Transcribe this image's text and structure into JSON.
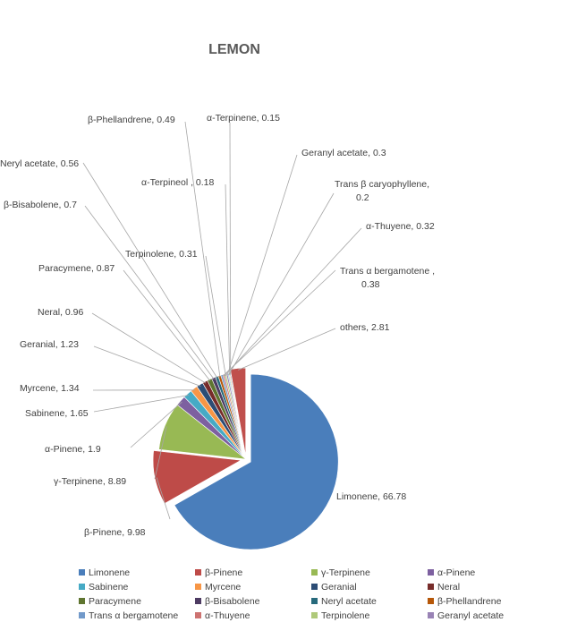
{
  "chart_data": {
    "type": "pie",
    "title": "LEMON",
    "slices": [
      {
        "name": "Limonene",
        "value": 66.78,
        "label": "Limonene, 66.78",
        "color": "#4a7ebb"
      },
      {
        "name": "β-Pinene",
        "value": 9.98,
        "label": "β-Pinene, 9.98",
        "color": "#be4b48"
      },
      {
        "name": "γ-Terpinene",
        "value": 8.89,
        "label": "γ-Terpinene, 8.89",
        "color": "#98b954"
      },
      {
        "name": "α-Pinene",
        "value": 1.9,
        "label": "α-Pinene, 1.9",
        "color": "#7d60a0"
      },
      {
        "name": "Sabinene",
        "value": 1.65,
        "label": "Sabinene, 1.65",
        "color": "#46aac5"
      },
      {
        "name": "Myrcene",
        "value": 1.34,
        "label": "Myrcene, 1.34",
        "color": "#f79646"
      },
      {
        "name": "Geranial",
        "value": 1.23,
        "label": "Geranial, 1.23",
        "color": "#2c4d75"
      },
      {
        "name": "Neral",
        "value": 0.96,
        "label": "Neral, 0.96",
        "color": "#772c2a"
      },
      {
        "name": "Paracymene",
        "value": 0.87,
        "label": "Paracymene, 0.87",
        "color": "#5f7530"
      },
      {
        "name": "β-Bisabolene",
        "value": 0.7,
        "label": "β-Bisabolene, 0.7",
        "color": "#4d3b62"
      },
      {
        "name": "Neryl acetate",
        "value": 0.56,
        "label": "Neryl acetate, 0.56",
        "color": "#276a7c"
      },
      {
        "name": "β-Phellandrene",
        "value": 0.49,
        "label": "β-Phellandrene, 0.49",
        "color": "#b65708"
      },
      {
        "name": "Trans α bergamotene",
        "value": 0.38,
        "label": "Trans α bergamotene ,\n0.38",
        "color": "#729aca"
      },
      {
        "name": "α-Thuyene",
        "value": 0.32,
        "label": "α-Thuyene, 0.32",
        "color": "#cd7371"
      },
      {
        "name": "Terpinolene",
        "value": 0.31,
        "label": "Terpinolene, 0.31",
        "color": "#afc97a"
      },
      {
        "name": "Geranyl acetate",
        "value": 0.3,
        "label": "Geranyl acetate, 0.3",
        "color": "#9983b5"
      },
      {
        "name": "Trans β caryophyllene",
        "value": 0.2,
        "label": "Trans β caryophyllene,\n0.2",
        "color": "#6fbdd1"
      },
      {
        "name": "α-Terpineol",
        "value": 0.18,
        "label": "α-Terpineol , 0.18",
        "color": "#f9ab6b"
      },
      {
        "name": "α-Terpinene",
        "value": 0.15,
        "label": "α-Terpinene, 0.15",
        "color": "#3a679c"
      },
      {
        "name": "others",
        "value": 2.81,
        "label": "others, 2.81",
        "color": "#c0504d"
      }
    ],
    "legend": [
      "Limonene",
      "β-Pinene",
      "γ-Terpinene",
      "α-Pinene",
      "Sabinene",
      "Myrcene",
      "Geranial",
      "Neral",
      "Paracymene",
      "β-Bisabolene",
      "Neryl acetate",
      "β-Phellandrene",
      "Trans α bergamotene",
      "α-Thuyene",
      "Terpinolene",
      "Geranyl acetate"
    ],
    "legend_placement": "bottom"
  }
}
